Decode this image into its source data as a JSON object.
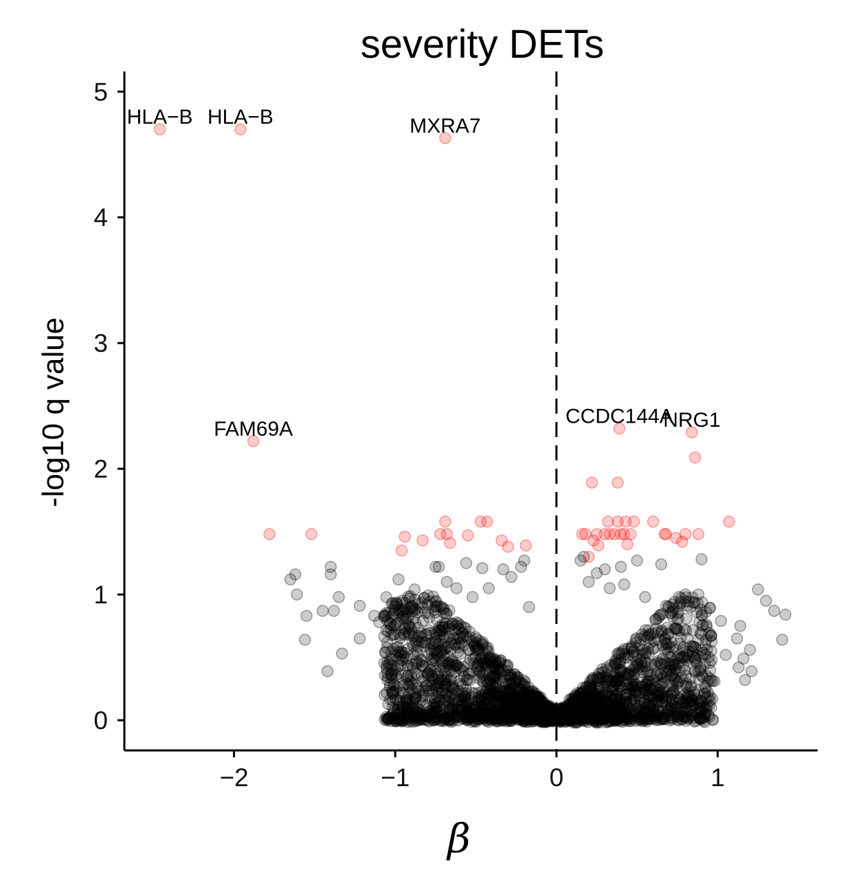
{
  "chart_data": {
    "type": "scatter",
    "title": "severity DETs",
    "xlabel": "β",
    "ylabel": "-log10 q value",
    "xlim": [
      -2.68,
      1.62
    ],
    "ylim": [
      -0.24,
      5.16
    ],
    "xticks": [
      -2,
      -1,
      0,
      1
    ],
    "xtick_labels": [
      "−2",
      "−1",
      "0",
      "1"
    ],
    "yticks": [
      0,
      1,
      2,
      3,
      4,
      5
    ],
    "ytick_labels": [
      "0",
      "1",
      "2",
      "3",
      "4",
      "5"
    ],
    "reference_line": {
      "x": 0,
      "style": "dashed"
    },
    "grid": false,
    "colors": {
      "significant": "#ff0000",
      "non_significant": "#000000",
      "alpha": 0.2
    },
    "labeled_points": [
      {
        "label": "HLA−B",
        "x": -2.46,
        "y": 4.7
      },
      {
        "label": "HLA−B",
        "x": -1.96,
        "y": 4.7
      },
      {
        "label": "MXRA7",
        "x": -0.69,
        "y": 4.63
      },
      {
        "label": "FAM69A",
        "x": -1.88,
        "y": 2.22
      },
      {
        "label": "CCDC144A",
        "x": 0.39,
        "y": 2.32
      },
      {
        "label": "NRG1",
        "x": 0.84,
        "y": 2.29
      }
    ],
    "significant_points": [
      [
        0.86,
        2.09
      ],
      [
        0.22,
        1.89
      ],
      [
        0.38,
        1.89
      ],
      [
        -1.78,
        1.48
      ],
      [
        -1.52,
        1.48
      ],
      [
        -0.96,
        1.35
      ],
      [
        -0.94,
        1.46
      ],
      [
        -0.83,
        1.43
      ],
      [
        -0.72,
        1.48
      ],
      [
        -0.69,
        1.58
      ],
      [
        -0.68,
        1.48
      ],
      [
        -0.66,
        1.41
      ],
      [
        -0.55,
        1.47
      ],
      [
        -0.47,
        1.58
      ],
      [
        -0.43,
        1.58
      ],
      [
        -0.34,
        1.43
      ],
      [
        -0.3,
        1.38
      ],
      [
        -0.19,
        1.39
      ],
      [
        0.16,
        1.48
      ],
      [
        0.18,
        1.48
      ],
      [
        0.2,
        1.3
      ],
      [
        0.23,
        1.43
      ],
      [
        0.25,
        1.48
      ],
      [
        0.26,
        1.39
      ],
      [
        0.3,
        1.48
      ],
      [
        0.32,
        1.58
      ],
      [
        0.33,
        1.48
      ],
      [
        0.36,
        1.48
      ],
      [
        0.38,
        1.58
      ],
      [
        0.4,
        1.48
      ],
      [
        0.42,
        1.48
      ],
      [
        0.43,
        1.58
      ],
      [
        0.44,
        1.4
      ],
      [
        0.46,
        1.48
      ],
      [
        0.48,
        1.58
      ],
      [
        0.6,
        1.58
      ],
      [
        0.67,
        1.48
      ],
      [
        0.68,
        1.48
      ],
      [
        0.74,
        1.45
      ],
      [
        0.78,
        1.42
      ],
      [
        0.8,
        1.48
      ],
      [
        0.88,
        1.48
      ],
      [
        1.07,
        1.58
      ]
    ],
    "outlier_points": [
      [
        -1.65,
        1.12
      ],
      [
        -1.62,
        1.16
      ],
      [
        -1.61,
        1.0
      ],
      [
        -1.55,
        0.83
      ],
      [
        -1.45,
        0.87
      ],
      [
        -1.4,
        1.22
      ],
      [
        -1.4,
        1.16
      ],
      [
        -1.38,
        0.87
      ],
      [
        -1.35,
        0.98
      ],
      [
        -1.33,
        0.53
      ],
      [
        -1.56,
        0.64
      ],
      [
        -1.42,
        0.39
      ],
      [
        -1.22,
        0.65
      ],
      [
        -1.22,
        0.91
      ],
      [
        -1.13,
        0.83
      ],
      [
        -1.1,
        0.78
      ],
      [
        -1.05,
        0.62
      ],
      [
        -1.0,
        0.91
      ],
      [
        -0.98,
        1.12
      ],
      [
        -0.93,
        0.86
      ],
      [
        -0.88,
        1.04
      ],
      [
        -0.8,
        0.92
      ],
      [
        -0.75,
        1.22
      ],
      [
        -0.73,
        1.22
      ],
      [
        -0.68,
        1.1
      ],
      [
        -0.62,
        1.05
      ],
      [
        -0.56,
        1.25
      ],
      [
        -0.52,
        0.98
      ],
      [
        -0.46,
        1.21
      ],
      [
        -0.42,
        1.05
      ],
      [
        -0.33,
        1.2
      ],
      [
        -0.28,
        1.14
      ],
      [
        -0.22,
        1.22
      ],
      [
        -0.2,
        1.27
      ],
      [
        -0.17,
        0.9
      ],
      [
        0.15,
        1.27
      ],
      [
        0.17,
        1.3
      ],
      [
        0.2,
        1.1
      ],
      [
        0.25,
        1.17
      ],
      [
        0.3,
        1.2
      ],
      [
        0.33,
        1.05
      ],
      [
        0.4,
        1.22
      ],
      [
        0.42,
        1.08
      ],
      [
        0.5,
        1.27
      ],
      [
        0.55,
        0.98
      ],
      [
        0.65,
        1.24
      ],
      [
        0.68,
        0.91
      ],
      [
        0.75,
        0.85
      ],
      [
        0.8,
        1.0
      ],
      [
        0.83,
        0.9
      ],
      [
        0.87,
        0.86
      ],
      [
        0.88,
        1.0
      ],
      [
        0.9,
        1.28
      ],
      [
        0.93,
        0.76
      ],
      [
        0.96,
        0.55
      ],
      [
        1.02,
        0.79
      ],
      [
        1.05,
        0.52
      ],
      [
        1.12,
        0.65
      ],
      [
        1.13,
        0.42
      ],
      [
        1.14,
        0.75
      ],
      [
        1.17,
        0.32
      ],
      [
        1.2,
        0.56
      ],
      [
        1.21,
        0.39
      ],
      [
        1.25,
        1.04
      ],
      [
        1.3,
        0.95
      ],
      [
        1.35,
        0.87
      ],
      [
        1.4,
        0.64
      ],
      [
        1.42,
        0.84
      ],
      [
        1.16,
        0.49
      ],
      [
        0.98,
        0.31
      ]
    ],
    "bulk_cloud": {
      "n": 2600,
      "max_y": 1.0,
      "x_range": [
        -1.2,
        1.2
      ],
      "description_hidden": true
    }
  }
}
